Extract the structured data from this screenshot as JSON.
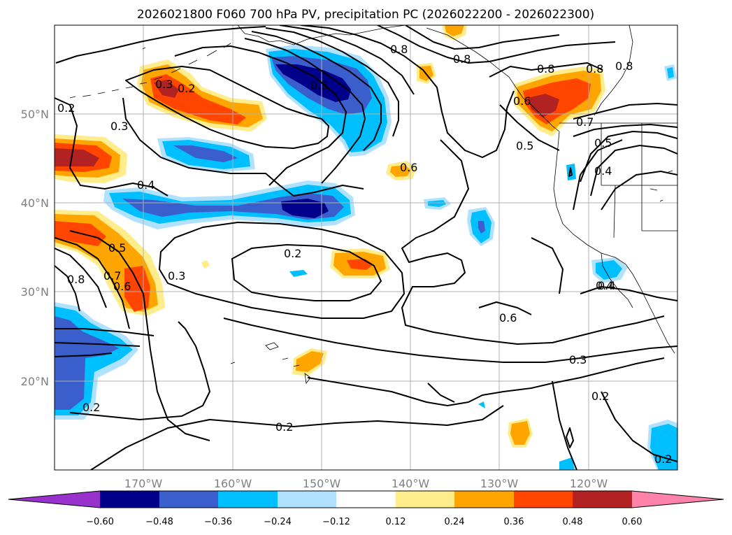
{
  "title": "2026021800 F060 700 hPa PV, precipitation PC (2026022200 - 2026022300)",
  "map": {
    "lat_ticks": [
      "50°N",
      "40°N",
      "30°N",
      "20°N"
    ],
    "lon_ticks": [
      "170°W",
      "160°W",
      "150°W",
      "140°W",
      "130°W",
      "120°W"
    ],
    "grid": true,
    "lon_range": [
      "180°W",
      "110°W"
    ],
    "lat_range": [
      "10°N",
      "60°N"
    ]
  },
  "contour_labels": [
    "0.3",
    "0.2",
    "0.5",
    "0.8",
    "0.8",
    "0.8",
    "0.8",
    "0.2",
    "0.3",
    "0.4",
    "0.6",
    "0.5",
    "0.6",
    "0.7",
    "0.8",
    "0.2",
    "0.3",
    "0.6",
    "0.4",
    "0.3",
    "0.2",
    "0.2",
    "0.2",
    "0.5",
    "0.4",
    "0.7",
    "0.5",
    "0.6",
    "0.4",
    "0.8",
    "0.2"
  ],
  "colorbar": {
    "ticks": [
      "−0.60",
      "−0.48",
      "−0.36",
      "−0.24",
      "−0.12",
      "0.12",
      "0.24",
      "0.36",
      "0.48",
      "0.60"
    ],
    "colors": [
      "#9932cc",
      "#00008b",
      "#3a5fcd",
      "#00bfff",
      "#b0e2ff",
      "#ffffff",
      "#ffec8b",
      "#ffa500",
      "#ff4500",
      "#b22222",
      "#ff82ab"
    ]
  }
}
